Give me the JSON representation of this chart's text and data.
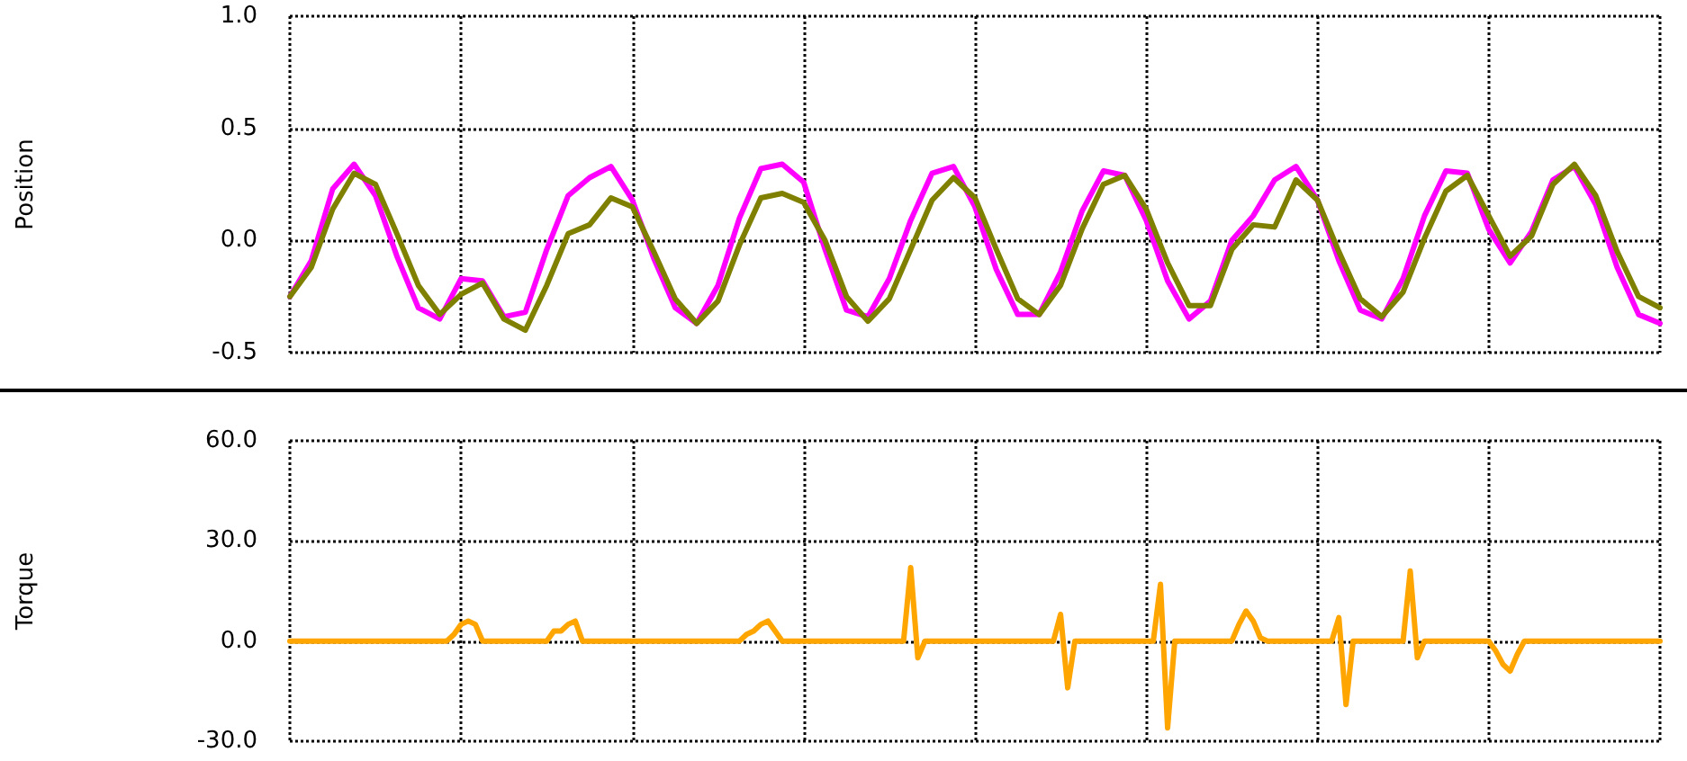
{
  "chart_data": [
    {
      "type": "line",
      "ylabel": "Position",
      "ylim": [
        -0.5,
        1.0
      ],
      "yticks": [
        {
          "value": -0.5,
          "label": "-0.5"
        },
        {
          "value": 0,
          "label": "0.0"
        },
        {
          "value": 0.5,
          "label": "0.5"
        },
        {
          "value": 1.0,
          "label": "1.0"
        }
      ],
      "grid": true,
      "tick_labels": "y",
      "categories": [
        null,
        null,
        null,
        null,
        null,
        null,
        null,
        null,
        null,
        null,
        null,
        null,
        null,
        null,
        null,
        null,
        null,
        null,
        null,
        null,
        null,
        null,
        null,
        null,
        null,
        null,
        null,
        null,
        null,
        null,
        null,
        null,
        null,
        null,
        null,
        null,
        null,
        null,
        null,
        null,
        null,
        null,
        null,
        null,
        null,
        null,
        null,
        null,
        null,
        null,
        null,
        null,
        null,
        null,
        null,
        null,
        null,
        null,
        null,
        null,
        null,
        null,
        null,
        null,
        null
      ],
      "series": [
        {
          "color": "#ff00ff",
          "values": [
            -0.25,
            -0.09,
            0.23,
            0.34,
            0.2,
            -0.07,
            -0.3,
            -0.35,
            -0.17,
            -0.18,
            -0.34,
            -0.32,
            -0.04,
            0.2,
            0.28,
            0.33,
            0.18,
            -0.08,
            -0.3,
            -0.37,
            -0.2,
            0.1,
            0.32,
            0.34,
            0.26,
            -0.04,
            -0.31,
            -0.34,
            -0.17,
            0.09,
            0.3,
            0.33,
            0.15,
            -0.13,
            -0.33,
            -0.33,
            -0.14,
            0.13,
            0.31,
            0.29,
            0.09,
            -0.18,
            -0.35,
            -0.27,
            0.0,
            0.11,
            0.27,
            0.33,
            0.18,
            -0.09,
            -0.31,
            -0.35,
            -0.17,
            0.11,
            0.31,
            0.3,
            0.05,
            -0.1,
            0.04,
            0.27,
            0.33,
            0.16,
            -0.12,
            -0.33,
            -0.37
          ]
        },
        {
          "color": "#808000",
          "values": [
            -0.25,
            -0.12,
            0.14,
            0.3,
            0.25,
            0.03,
            -0.2,
            -0.33,
            -0.24,
            -0.19,
            -0.35,
            -0.4,
            -0.2,
            0.03,
            0.07,
            0.19,
            0.15,
            -0.05,
            -0.26,
            -0.37,
            -0.27,
            -0.02,
            0.19,
            0.21,
            0.17,
            0.0,
            -0.25,
            -0.36,
            -0.26,
            -0.04,
            0.18,
            0.28,
            0.19,
            -0.04,
            -0.26,
            -0.33,
            -0.2,
            0.05,
            0.25,
            0.29,
            0.14,
            -0.1,
            -0.29,
            -0.29,
            -0.04,
            0.07,
            0.06,
            0.27,
            0.18,
            -0.05,
            -0.26,
            -0.34,
            -0.23,
            0.01,
            0.22,
            0.29,
            0.11,
            -0.07,
            0.02,
            0.25,
            0.34,
            0.2,
            -0.05,
            -0.25,
            -0.3
          ]
        }
      ]
    },
    {
      "type": "line",
      "ylabel": "Torque",
      "ylim": [
        -30,
        60
      ],
      "yticks": [
        {
          "value": -30,
          "label": "-30.0"
        },
        {
          "value": 0,
          "label": "0.0"
        },
        {
          "value": 30,
          "label": "30.0"
        },
        {
          "value": 60,
          "label": "60.0"
        }
      ],
      "grid": true,
      "tick_labels": "y",
      "categories": [
        null,
        null,
        null,
        null,
        null,
        null,
        null,
        null,
        null,
        null,
        null,
        null,
        null,
        null,
        null,
        null,
        null,
        null,
        null,
        null,
        null,
        null,
        null,
        null,
        null,
        null,
        null,
        null,
        null,
        null,
        null,
        null,
        null,
        null,
        null,
        null,
        null,
        null,
        null,
        null,
        null,
        null,
        null,
        null,
        null,
        null,
        null,
        null,
        null,
        null,
        null,
        null,
        null,
        null,
        null,
        null,
        null,
        null,
        null,
        null,
        null,
        null,
        null,
        null,
        null,
        null,
        null,
        null,
        null,
        null,
        null,
        null,
        null,
        null,
        null,
        null,
        null,
        null,
        null,
        null,
        null,
        null,
        null,
        null,
        null,
        null,
        null,
        null,
        null,
        null,
        null,
        null,
        null,
        null,
        null,
        null,
        null,
        null,
        null,
        null,
        null,
        null,
        null,
        null,
        null,
        null,
        null,
        null,
        null,
        null,
        null,
        null,
        null,
        null,
        null,
        null,
        null,
        null,
        null,
        null,
        null,
        null,
        null,
        null,
        null,
        null,
        null,
        null,
        null,
        null,
        null,
        null,
        null,
        null,
        null,
        null,
        null,
        null,
        null,
        null,
        null,
        null,
        null,
        null,
        null,
        null,
        null,
        null,
        null,
        null,
        null,
        null,
        null,
        null,
        null,
        null,
        null,
        null,
        null,
        null,
        null,
        null,
        null,
        null,
        null,
        null,
        null,
        null,
        null,
        null,
        null,
        null,
        null,
        null,
        null,
        null,
        null,
        null,
        null,
        null,
        null,
        null,
        null,
        null,
        null,
        null,
        null,
        null,
        null,
        null,
        null,
        null,
        null
      ],
      "series": [
        {
          "color": "#ffa500",
          "values": [
            0,
            0,
            0,
            0,
            0,
            0,
            0,
            0,
            0,
            0,
            0,
            0,
            0,
            0,
            0,
            0,
            0,
            0,
            0,
            0,
            0,
            0,
            0,
            2,
            5,
            6,
            5,
            0,
            0,
            0,
            0,
            0,
            0,
            0,
            0,
            0,
            0,
            3,
            3,
            5,
            6,
            0,
            0,
            0,
            0,
            0,
            0,
            0,
            0,
            0,
            0,
            0,
            0,
            0,
            0,
            0,
            0,
            0,
            0,
            0,
            0,
            0,
            0,
            0,
            2,
            3,
            5,
            6,
            3,
            0,
            0,
            0,
            0,
            0,
            0,
            0,
            0,
            0,
            0,
            0,
            0,
            0,
            0,
            0,
            0,
            0,
            0,
            22,
            -5,
            0,
            0,
            0,
            0,
            0,
            0,
            0,
            0,
            0,
            0,
            0,
            0,
            0,
            0,
            0,
            0,
            0,
            0,
            0,
            8,
            -14,
            0,
            0,
            0,
            0,
            0,
            0,
            0,
            0,
            0,
            0,
            0,
            0,
            17,
            -26,
            0,
            0,
            0,
            0,
            0,
            0,
            0,
            0,
            0,
            5,
            9,
            6,
            1,
            0,
            0,
            0,
            0,
            0,
            0,
            0,
            0,
            0,
            0,
            7,
            -19,
            0,
            0,
            0,
            0,
            0,
            0,
            0,
            0,
            21,
            -5,
            0,
            0,
            0,
            0,
            0,
            0,
            0,
            0,
            0,
            0,
            -3,
            -7,
            -9,
            -4,
            0,
            0,
            0,
            0,
            0,
            0,
            0,
            0,
            0,
            0,
            0,
            0,
            0,
            0,
            0,
            0,
            0,
            0,
            0,
            0
          ]
        }
      ]
    }
  ]
}
